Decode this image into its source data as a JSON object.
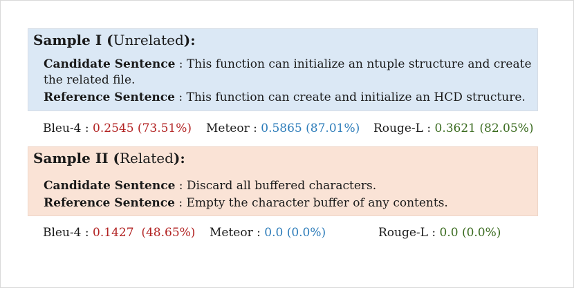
{
  "sample1": {
    "title_bold": "Sample I (",
    "title_plain": "Unrelated",
    "title_end": "):",
    "candidate_label": "Candidate Sentence",
    "candidate_text_1": " : This function can initialize an ntuple structure and create",
    "candidate_text_2": "the related file.",
    "reference_label": "Reference Sentence",
    "reference_text": " : This function can create and initialize an HCD structure.",
    "metrics": {
      "bleu_label": "Bleu-4 : ",
      "bleu_value": "0.2545 (73.51%)",
      "meteor_label": "Meteor : ",
      "meteor_value": "0.5865 (87.01%)",
      "rouge_label": "Rouge-L : ",
      "rouge_value": "0.3621 (82.05%)"
    }
  },
  "sample2": {
    "title_bold": "Sample II (",
    "title_plain": "Related",
    "title_end": "):",
    "candidate_label": "Candidate Sentence",
    "candidate_text": " : Discard all buffered characters.",
    "reference_label": "Reference Sentence",
    "reference_text": " : Empty the character buffer of any contents.",
    "metrics": {
      "bleu_label": "Bleu-4 : ",
      "bleu_value": "0.1427  (48.65%)",
      "meteor_label": "Meteor : ",
      "meteor_value": "0.0 (0.0%)",
      "rouge_label": "Rouge-L : ",
      "rouge_value": "0.0 (0.0%)"
    }
  },
  "colors": {
    "bleu": "#b22222",
    "meteor": "#2b7bb9",
    "rouge": "#3a6b1f",
    "box1_bg": "#dbe8f5",
    "box2_bg": "#fae3d6"
  }
}
